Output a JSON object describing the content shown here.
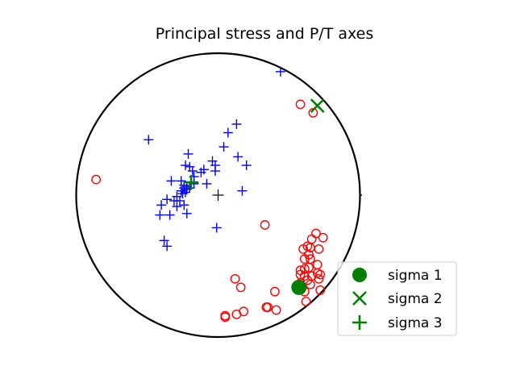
{
  "chart_data": {
    "type": "scatter",
    "projection": "stereonet-lower-hemisphere",
    "title": "Principal stress and P/T axes",
    "xlim": [
      -1,
      1
    ],
    "ylim": [
      -1,
      1
    ],
    "grid": false,
    "legend_position": "lower-right",
    "colors": {
      "p_axes": "#ff0000",
      "t_axes": "#0000ff",
      "sigma": "#008000",
      "center": "#000000",
      "net": "#000000"
    },
    "center_mark": [
      0,
      0
    ],
    "p_axes": [
      [
        -0.86,
        0.11
      ],
      [
        0.58,
        0.64
      ],
      [
        0.67,
        0.58
      ],
      [
        0.33,
        -0.21
      ],
      [
        0.69,
        -0.27
      ],
      [
        0.74,
        -0.3
      ],
      [
        0.66,
        -0.31
      ],
      [
        0.63,
        -0.36
      ],
      [
        0.65,
        -0.37
      ],
      [
        0.71,
        -0.38
      ],
      [
        0.64,
        -0.42
      ],
      [
        0.6,
        -0.38
      ],
      [
        0.61,
        -0.45
      ],
      [
        0.65,
        -0.45
      ],
      [
        0.7,
        -0.49
      ],
      [
        0.58,
        -0.53
      ],
      [
        0.61,
        -0.52
      ],
      [
        0.64,
        -0.51
      ],
      [
        0.7,
        -0.55
      ],
      [
        0.72,
        -0.56
      ],
      [
        0.58,
        -0.56
      ],
      [
        0.61,
        -0.57
      ],
      [
        0.66,
        -0.57
      ],
      [
        0.71,
        -0.59
      ],
      [
        0.63,
        -0.6
      ],
      [
        0.58,
        -0.62
      ],
      [
        0.65,
        -0.63
      ],
      [
        0.72,
        -0.67
      ],
      [
        0.4,
        -0.68
      ],
      [
        0.61,
        -0.68
      ],
      [
        0.62,
        -0.75
      ],
      [
        0.12,
        -0.59
      ],
      [
        0.16,
        -0.65
      ],
      [
        0.34,
        -0.79
      ],
      [
        0.35,
        -0.79
      ],
      [
        0.41,
        -0.81
      ],
      [
        0.18,
        -0.82
      ],
      [
        0.13,
        -0.84
      ],
      [
        0.05,
        -0.85
      ],
      [
        0.05,
        -0.86
      ]
    ],
    "t_axes": [
      [
        0.44,
        0.87
      ],
      [
        0.13,
        0.5
      ],
      [
        0.07,
        0.44
      ],
      [
        0.04,
        0.34
      ],
      [
        -0.49,
        0.39
      ],
      [
        -0.21,
        0.29
      ],
      [
        0.14,
        0.27
      ],
      [
        0.2,
        0.21
      ],
      [
        -0.2,
        0.2
      ],
      [
        -0.23,
        0.21
      ],
      [
        -0.18,
        0.17
      ],
      [
        -0.1,
        0.18
      ],
      [
        -0.17,
        0.13
      ],
      [
        -0.12,
        0.16
      ],
      [
        -0.04,
        0.24
      ],
      [
        -0.02,
        0.21
      ],
      [
        -0.02,
        0.17
      ],
      [
        -0.33,
        0.1
      ],
      [
        -0.26,
        0.1
      ],
      [
        -0.24,
        0.07
      ],
      [
        -0.22,
        0.06
      ],
      [
        -0.26,
        0.03
      ],
      [
        -0.24,
        0.05
      ],
      [
        -0.23,
        0.02
      ],
      [
        -0.2,
        0.05
      ],
      [
        -0.22,
        0.04
      ],
      [
        -0.25,
        0.01
      ],
      [
        -0.27,
        -0.04
      ],
      [
        -0.29,
        -0.01
      ],
      [
        -0.31,
        -0.04
      ],
      [
        -0.36,
        -0.03
      ],
      [
        -0.4,
        -0.07
      ],
      [
        -0.34,
        -0.14
      ],
      [
        -0.41,
        -0.14
      ],
      [
        -0.24,
        -0.07
      ],
      [
        -0.22,
        -0.13
      ],
      [
        -0.29,
        -0.08
      ],
      [
        -0.17,
        0.08
      ],
      [
        -0.08,
        0.08
      ],
      [
        -0.01,
        -0.23
      ],
      [
        0.17,
        0.03
      ],
      [
        -0.38,
        -0.32
      ],
      [
        -0.36,
        -0.36
      ]
    ],
    "sigmas": [
      {
        "name": "sigma 1",
        "marker": "circle",
        "x": 0.57,
        "y": -0.65
      },
      {
        "name": "sigma 2",
        "marker": "x",
        "x": 0.7,
        "y": 0.63
      },
      {
        "name": "sigma 3",
        "marker": "plus",
        "x": -0.19,
        "y": 0.09
      }
    ]
  }
}
